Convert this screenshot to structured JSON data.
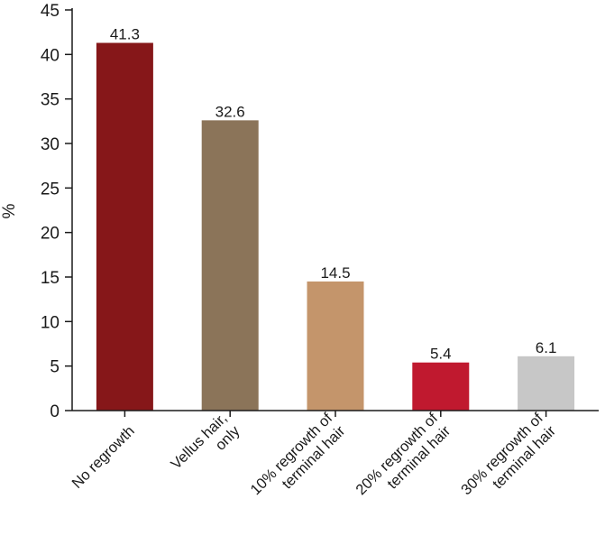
{
  "chart_data": {
    "type": "bar",
    "title": "",
    "xlabel": "",
    "ylabel": "%",
    "ylim": [
      0,
      45
    ],
    "yticks": [
      0,
      5,
      10,
      15,
      20,
      25,
      30,
      35,
      40,
      45
    ],
    "grid": false,
    "legend": "none",
    "categories": [
      [
        "No regrowth"
      ],
      [
        "Vellus hair,",
        "only"
      ],
      [
        "10% regrowth of",
        "terminal hair"
      ],
      [
        "20% regrowth of",
        "terminal hair"
      ],
      [
        "30% regrowth of",
        "terminal hair"
      ]
    ],
    "values": [
      41.3,
      32.6,
      14.5,
      5.4,
      6.1
    ],
    "value_labels": [
      "41.3",
      "32.6",
      "14.5",
      "5.4",
      "6.1"
    ],
    "colors": [
      "#861719",
      "#8b7459",
      "#c4956b",
      "#c0192f",
      "#c7c7c7"
    ]
  }
}
